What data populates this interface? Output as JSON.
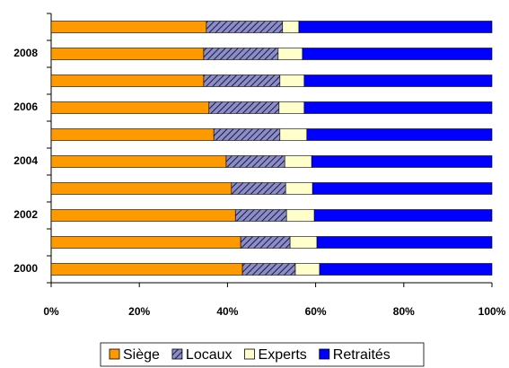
{
  "chart_data": {
    "type": "stacked_bar_h",
    "categories": [
      "2000",
      null,
      "2002",
      null,
      "2004",
      null,
      "2006",
      null,
      "2008",
      null
    ],
    "series": [
      {
        "name": "Siège",
        "color": "#ff9900",
        "values": [
          43.4,
          43.0,
          41.8,
          40.9,
          39.7,
          36.9,
          35.8,
          34.6,
          34.6,
          35.2
        ]
      },
      {
        "name": "Locaux",
        "color": "#8c8cc8",
        "hatch": true,
        "values": [
          12.0,
          11.2,
          11.6,
          12.3,
          13.3,
          15.0,
          15.9,
          17.3,
          16.9,
          17.3
        ]
      },
      {
        "name": "Experts",
        "color": "#ffffcc",
        "values": [
          5.5,
          6.1,
          6.3,
          6.1,
          6.1,
          6.1,
          5.7,
          5.5,
          5.5,
          3.7
        ]
      },
      {
        "name": "Retraités",
        "color": "#0000ff",
        "values": [
          39.1,
          39.7,
          40.3,
          40.7,
          40.9,
          42.0,
          42.6,
          42.6,
          43.0,
          43.8
        ]
      }
    ],
    "xlim": [
      0,
      100
    ],
    "xticks": [
      {
        "value": 0,
        "label": "0%"
      },
      {
        "value": 20,
        "label": "20%"
      },
      {
        "value": 40,
        "label": "40%"
      },
      {
        "value": 60,
        "label": "60%"
      },
      {
        "value": 80,
        "label": "80%"
      },
      {
        "value": 100,
        "label": "100%"
      }
    ],
    "legend": "bottom"
  }
}
